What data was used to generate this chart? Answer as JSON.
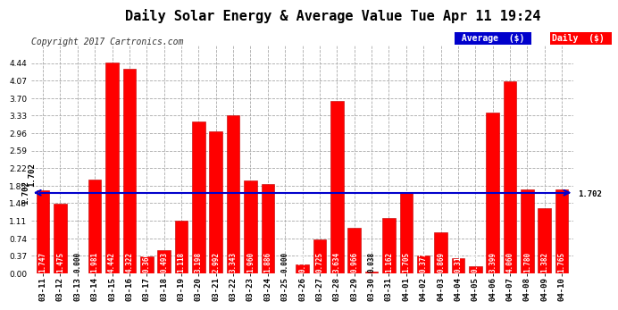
{
  "title": "Daily Solar Energy & Average Value Tue Apr 11 19:24",
  "copyright": "Copyright 2017 Cartronics.com",
  "average_value": 1.702,
  "average_label": "1.702",
  "categories": [
    "03-11",
    "03-12",
    "03-13",
    "03-14",
    "03-15",
    "03-16",
    "03-17",
    "03-18",
    "03-19",
    "03-20",
    "03-21",
    "03-22",
    "03-23",
    "03-24",
    "03-25",
    "03-26",
    "03-27",
    "03-28",
    "03-29",
    "03-30",
    "03-31",
    "04-01",
    "04-02",
    "04-03",
    "04-04",
    "04-05",
    "04-06",
    "04-07",
    "04-08",
    "04-09",
    "04-10"
  ],
  "values": [
    1.747,
    1.475,
    0.0,
    1.981,
    4.442,
    4.322,
    0.366,
    0.493,
    1.118,
    3.198,
    2.992,
    3.343,
    1.96,
    1.886,
    0.0,
    0.186,
    0.725,
    3.634,
    0.966,
    0.038,
    1.162,
    1.705,
    0.377,
    0.869,
    0.315,
    0.156,
    3.399,
    4.06,
    1.78,
    1.382,
    1.765
  ],
  "bar_color": "#ff0000",
  "bar_edge_color": "#bb0000",
  "line_color": "#0000cc",
  "avg_text_color": "#000000",
  "background_color": "#ffffff",
  "plot_bg_color": "#ffffff",
  "grid_color": "#aaaaaa",
  "ylim": [
    0.0,
    4.81
  ],
  "yticks": [
    0.0,
    0.37,
    0.74,
    1.11,
    1.48,
    1.85,
    2.22,
    2.59,
    2.96,
    3.33,
    3.7,
    4.07,
    4.44
  ],
  "legend_avg_color": "#0000cc",
  "legend_daily_color": "#ff0000",
  "legend_text_color": "#ffffff",
  "title_fontsize": 11,
  "tick_fontsize": 6.5,
  "bar_value_fontsize": 5.5,
  "copyright_fontsize": 7
}
